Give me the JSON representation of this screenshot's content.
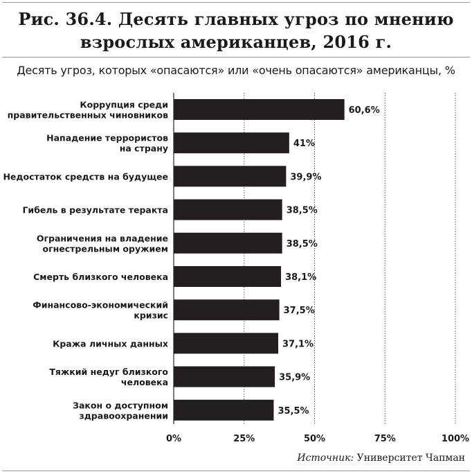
{
  "header": {
    "title_line1": "Рис. 36.4. Десять главных угроз по мнению",
    "title_line2": "взрослых американцев, 2016 г.",
    "subtitle": "Десять угроз, которых «опасаются» или «очень опасаются» американцы, %"
  },
  "chart_data": {
    "type": "bar",
    "orientation": "horizontal",
    "categories": [
      [
        "Коррупция среди",
        "правительственных чиновников"
      ],
      [
        "Нападение террористов",
        "на страну"
      ],
      [
        "Недостаток средств на будущее"
      ],
      [
        "Гибель в результате теракта"
      ],
      [
        "Ограничения на владение",
        "огнестрельным оружием"
      ],
      [
        "Смерть близкого человека"
      ],
      [
        "Финансово-экономический",
        "кризис"
      ],
      [
        "Кража личных данных"
      ],
      [
        "Тяжкий недуг близкого",
        "человека"
      ],
      [
        "Закон о доступном",
        "здравоохранении"
      ]
    ],
    "values": [
      60.6,
      41,
      39.9,
      38.5,
      38.5,
      38.1,
      37.5,
      37.1,
      35.9,
      35.5
    ],
    "value_labels": [
      "60,6%",
      "41%",
      "39,9%",
      "38,5%",
      "38,5%",
      "38,1%",
      "37,5%",
      "37,1%",
      "35,9%",
      "35,5%"
    ],
    "xlim": [
      0,
      100
    ],
    "xticks": [
      0,
      25,
      50,
      75,
      100
    ],
    "xtick_labels": [
      "0%",
      "25%",
      "50%",
      "75%",
      "100%"
    ],
    "grid": "vertical dashed",
    "bar_color": "#231f20"
  },
  "footer": {
    "source_label": "Источник:",
    "source_value": "Университет Чапман"
  }
}
